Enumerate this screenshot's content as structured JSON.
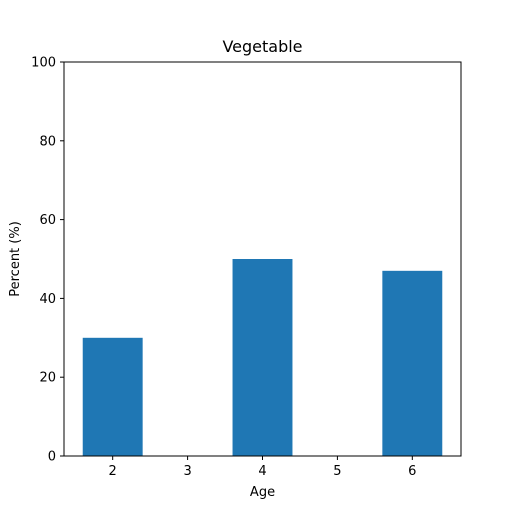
{
  "chart_data": {
    "type": "bar",
    "title": "Vegetable",
    "xlabel": "Age",
    "ylabel": "Percent (%)",
    "x": [
      2,
      4,
      6
    ],
    "values": [
      30,
      50,
      47
    ],
    "xticks": [
      "2",
      "3",
      "4",
      "5",
      "6"
    ],
    "yticks": [
      "0",
      "20",
      "40",
      "60",
      "80",
      "100"
    ],
    "xlim": [
      1.35,
      6.65
    ],
    "ylim": [
      0,
      100
    ],
    "grid": false,
    "bar_color": "#1f77b4"
  }
}
